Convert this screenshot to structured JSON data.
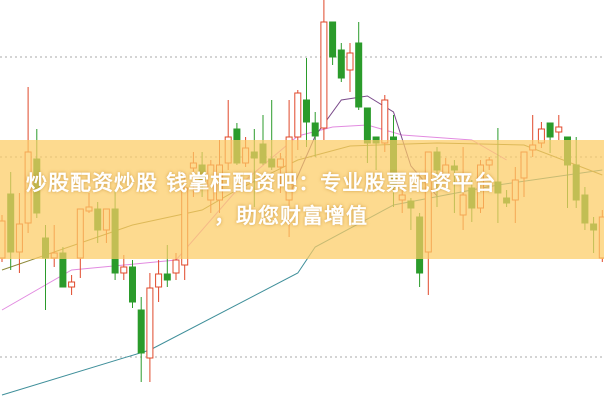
{
  "caption": {
    "line1": "炒股配资炒股 钱掌柜配资吧：专业股票配资平台",
    "line2": "，助您财富增值"
  },
  "chart_data": {
    "type": "candlestick",
    "title": "",
    "grid": "horizontal dotted",
    "ylim": [
      0,
      40.1
    ],
    "colors": {
      "up": "#e0482a",
      "down": "#2b9b2b",
      "band": "#fcd06a",
      "ma1": "#3f8f9a",
      "ma2": "#8f8a3a",
      "ma3": "#e28be0",
      "ma4": "#7a4a8a"
    },
    "gridlines": [
      34.4,
      24.4,
      4.4
    ],
    "candles": [
      [
        14.3,
        18.6,
        13.9,
        18.0
      ],
      [
        20.7,
        22.9,
        13.1,
        14.9
      ],
      [
        14.9,
        20.8,
        12.8,
        17.7
      ],
      [
        17.8,
        31.4,
        16.8,
        24.9
      ],
      [
        24.2,
        27.2,
        18.3,
        18.8
      ],
      [
        16.3,
        17.6,
        9.1,
        14.3
      ],
      [
        14.3,
        17.6,
        13.4,
        14.8
      ],
      [
        14.8,
        15.4,
        11.4,
        11.4
      ],
      [
        11.4,
        12.6,
        10.6,
        11.9
      ],
      [
        14.3,
        19.2,
        12.3,
        19.2
      ],
      [
        19.0,
        20.8,
        18.8,
        19.4
      ],
      [
        19.2,
        19.9,
        15.8,
        17.1
      ],
      [
        17.1,
        19.2,
        15.8,
        19.2
      ],
      [
        19.2,
        21.1,
        12.1,
        12.8
      ],
      [
        12.8,
        14.6,
        12.1,
        13.4
      ],
      [
        13.4,
        14.1,
        9.3,
        9.9
      ],
      [
        9.1,
        10.4,
        1.9,
        4.8
      ],
      [
        4.3,
        12.8,
        1.9,
        11.3
      ],
      [
        11.4,
        14.1,
        9.9,
        12.7
      ],
      [
        12.7,
        15.6,
        11.4,
        12.1
      ],
      [
        12.8,
        14.8,
        12.1,
        14.1
      ],
      [
        13.6,
        22.8,
        12.1,
        21.3
      ],
      [
        23.3,
        24.9,
        20.4,
        23.8
      ],
      [
        23.6,
        24.9,
        20.4,
        22.1
      ],
      [
        20.1,
        24.1,
        18.8,
        23.6
      ],
      [
        20.1,
        26.1,
        18.8,
        23.6
      ],
      [
        23.8,
        30.1,
        23.1,
        26.4
      ],
      [
        27.2,
        27.8,
        23.6,
        23.8
      ],
      [
        23.8,
        26.4,
        23.4,
        25.3
      ],
      [
        24.9,
        27.2,
        19.4,
        24.3
      ],
      [
        25.7,
        28.6,
        23.6,
        23.8
      ],
      [
        24.2,
        30.1,
        23.1,
        23.4
      ],
      [
        23.4,
        24.8,
        20.8,
        24.2
      ],
      [
        20.1,
        30.1,
        16.4,
        26.4
      ],
      [
        26.4,
        31.1,
        25.1,
        30.8
      ],
      [
        30.1,
        34.3,
        25.4,
        27.9
      ],
      [
        27.8,
        28.9,
        24.4,
        26.5
      ],
      [
        27.3,
        40.1,
        26.1,
        37.9
      ],
      [
        37.9,
        37.9,
        33.6,
        34.4
      ],
      [
        35.1,
        35.8,
        31.9,
        32.3
      ],
      [
        33.1,
        35.8,
        30.9,
        34.8
      ],
      [
        35.8,
        37.9,
        29.1,
        29.4
      ],
      [
        29.3,
        29.3,
        23.8,
        25.8
      ],
      [
        26.4,
        26.4,
        23.1,
        25.8
      ],
      [
        25.8,
        30.6,
        24.9,
        30.1
      ],
      [
        26.4,
        28.6,
        19.4,
        21.4
      ],
      [
        20.1,
        21.1,
        18.8,
        20.6
      ],
      [
        20.0,
        20.3,
        17.1,
        19.3
      ],
      [
        18.4,
        18.8,
        11.4,
        12.8
      ],
      [
        14.9,
        24.9,
        10.6,
        24.9
      ],
      [
        24.9,
        25.4,
        19.4,
        23.1
      ],
      [
        22.3,
        24.3,
        21.3,
        23.6
      ],
      [
        23.5,
        24.1,
        18.8,
        23.1
      ],
      [
        18.6,
        25.4,
        17.1,
        20.6
      ],
      [
        21.3,
        22.1,
        17.9,
        19.3
      ],
      [
        19.3,
        24.1,
        18.8,
        23.6
      ],
      [
        23.6,
        24.4,
        23.1,
        24.1
      ],
      [
        21.9,
        27.3,
        17.8,
        20.8
      ],
      [
        20.3,
        21.1,
        19.4,
        19.8
      ],
      [
        20.1,
        23.4,
        17.8,
        22.1
      ],
      [
        22.3,
        24.9,
        20.4,
        24.9
      ],
      [
        25.1,
        28.6,
        24.4,
        25.6
      ],
      [
        25.8,
        27.9,
        25.3,
        27.2
      ],
      [
        27.8,
        27.8,
        24.8,
        26.4
      ],
      [
        26.9,
        28.6,
        26.1,
        27.4
      ],
      [
        26.4,
        26.4,
        19.3,
        23.6
      ],
      [
        23.6,
        26.4,
        19.3,
        20.1
      ],
      [
        20.6,
        21.4,
        17.1,
        17.8
      ],
      [
        17.7,
        18.4,
        14.8,
        17.1
      ],
      [
        14.3,
        19.1,
        13.9,
        18.4
      ]
    ],
    "moving_averages": [
      {
        "color_key": "ma1",
        "points": [
          [
            0,
            0.6
          ],
          [
            17,
            5.1
          ],
          [
            34,
            12.8
          ],
          [
            36,
            15.4
          ],
          [
            45,
            19.6
          ],
          [
            57,
            21.6
          ],
          [
            69,
            23.1
          ]
        ]
      },
      {
        "color_key": "ma2",
        "points": [
          [
            0,
            13.1
          ],
          [
            15,
            17.6
          ],
          [
            23,
            19.1
          ],
          [
            27,
            21.1
          ],
          [
            34,
            24.1
          ],
          [
            40,
            25.5
          ],
          [
            50,
            25.8
          ],
          [
            60,
            25.6
          ],
          [
            69,
            22.6
          ]
        ]
      },
      {
        "color_key": "ma3",
        "points": [
          [
            0,
            9.1
          ],
          [
            8,
            13.1
          ],
          [
            20,
            14.1
          ],
          [
            28,
            22.1
          ],
          [
            34,
            26.5
          ],
          [
            38,
            27.4
          ],
          [
            42,
            27.6
          ],
          [
            46,
            26.6
          ],
          [
            54,
            26.1
          ],
          [
            58,
            24.1
          ]
        ]
      },
      {
        "color_key": "ma4",
        "points": [
          [
            33,
            20.5
          ],
          [
            36,
            26.5
          ],
          [
            39,
            30.1
          ],
          [
            42,
            30.5
          ],
          [
            45,
            28.9
          ],
          [
            47,
            23.5
          ],
          [
            50,
            20.5
          ]
        ]
      }
    ]
  }
}
